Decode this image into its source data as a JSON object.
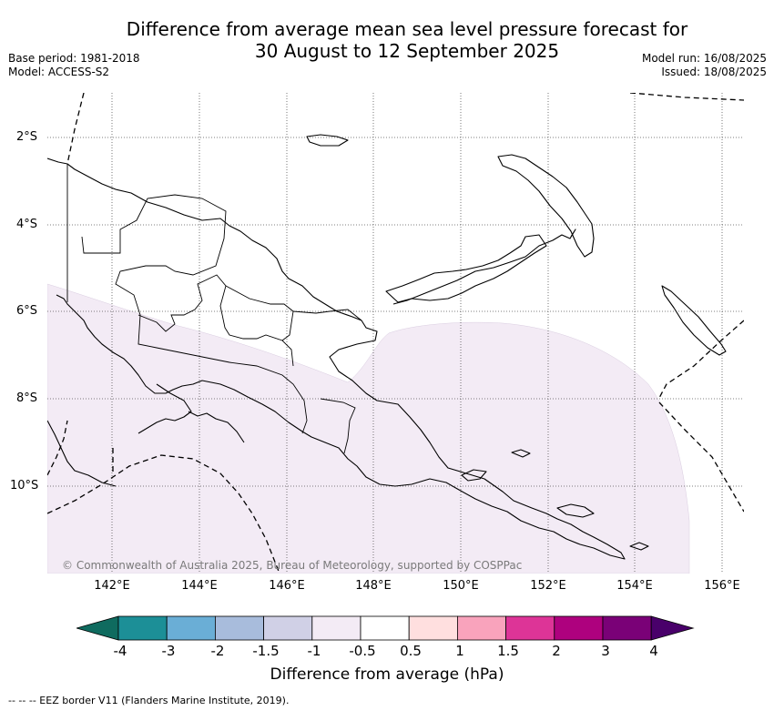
{
  "title": {
    "line1": "Difference from average mean sea level pressure forecast for",
    "line2": "30 August to 12 September 2025"
  },
  "meta": {
    "base_period": "Base period: 1981-2018",
    "model": "Model: ACCESS-S2",
    "model_run": "Model run: 16/08/2025",
    "issued": "Issued: 18/08/2025"
  },
  "map": {
    "latitude_labels": [
      "2°S",
      "4°S",
      "6°S",
      "8°S",
      "10°S"
    ],
    "longitude_labels": [
      "142°E",
      "144°E",
      "146°E",
      "148°E",
      "150°E",
      "152°E",
      "154°E",
      "156°E"
    ],
    "extent": {
      "lon_min": 140.6,
      "lon_max": 156.5,
      "lat_min": -12.0,
      "lat_max": -1.0
    },
    "anomaly_region": "-1 to -0.5 hPa over southern Papua New Guinea, Gulf of Papua, Coral Sea and Solomon Sea",
    "anomaly_color": "#f3ebf5",
    "credit": "© Commonwealth of Australia 2025, Bureau of Meteorology, supported by COSPPac"
  },
  "colorbar": {
    "label": "Difference from average (hPa)",
    "ticks": [
      "-4",
      "-3",
      "-2",
      "-1.5",
      "-1",
      "-0.5",
      "0.5",
      "1",
      "1.5",
      "2",
      "3",
      "4"
    ],
    "colors": [
      "#0f6b5f",
      "#1c8f97",
      "#6aaed6",
      "#a8bcdc",
      "#d0d0e6",
      "#f3ebf5",
      "#ffffff",
      "#ffdfdf",
      "#f9a3bc",
      "#dd3497",
      "#ae017e",
      "#7a0177",
      "#49006a"
    ]
  },
  "footer": "--  --  -- EEZ border V11 (Flanders Marine Institute, 2019)."
}
